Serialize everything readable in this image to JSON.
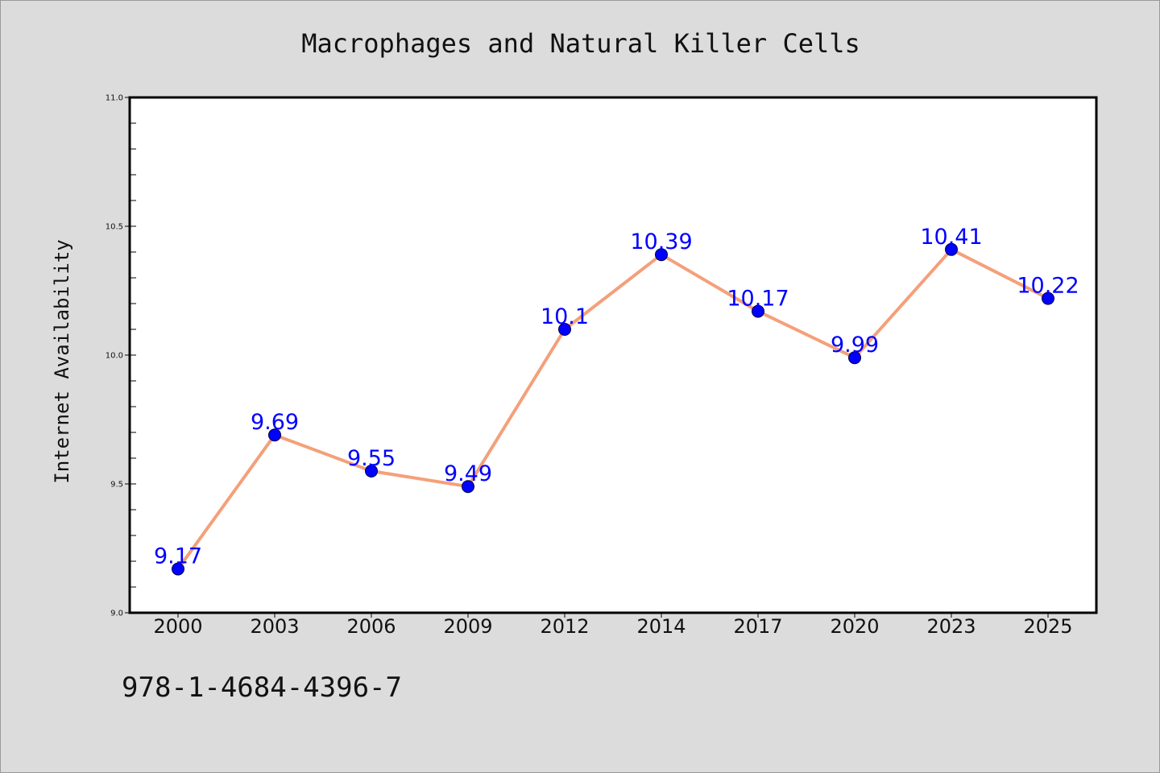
{
  "chart_data": {
    "type": "line",
    "title": "Macrophages and Natural Killer Cells",
    "xlabel": "",
    "ylabel": "Internet Availability",
    "categories": [
      "2000",
      "2003",
      "2006",
      "2009",
      "2012",
      "2014",
      "2017",
      "2020",
      "2023",
      "2025"
    ],
    "series": [
      {
        "values": [
          9.17,
          9.69,
          9.55,
          9.49,
          10.1,
          10.39,
          10.17,
          9.99,
          10.41,
          10.22
        ],
        "labels": [
          "9.17",
          "9.69",
          "9.55",
          "9.49",
          "10.1",
          "10.39",
          "10.17",
          "9.99",
          "10.41",
          "10.22"
        ]
      }
    ],
    "ylim": [
      9.0,
      11.0
    ],
    "yticks": [
      "9.0",
      "9.5",
      "10.0",
      "10.5",
      "11.0"
    ],
    "grid": false,
    "colors": {
      "line": "#f4a07a",
      "marker": "#0000ff",
      "data_label": "#0000ff",
      "background": "#dcdcdc",
      "plot_background": "#ffffff"
    }
  },
  "footnote": "978-1-4684-4396-7"
}
